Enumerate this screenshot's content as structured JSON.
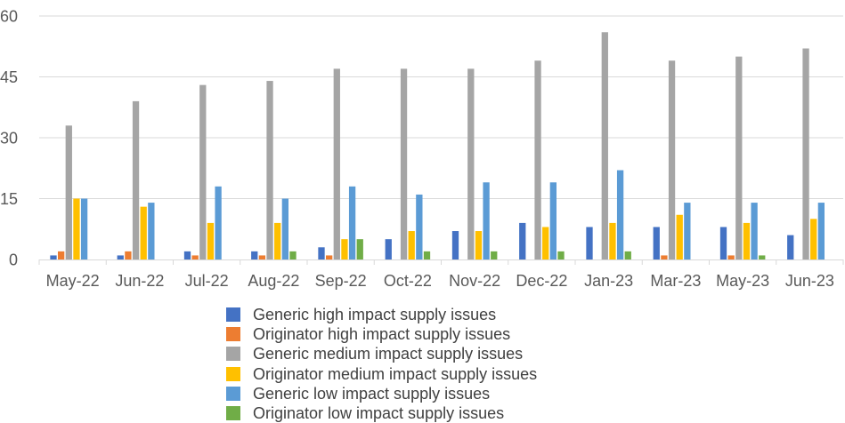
{
  "chart_data": {
    "type": "bar",
    "title": "",
    "xlabel": "",
    "ylabel": "",
    "ylim": [
      0,
      60
    ],
    "yticks": [
      0,
      15,
      30,
      45,
      60
    ],
    "grid": true,
    "legend_position": "bottom",
    "categories": [
      "May-22",
      "Jun-22",
      "Jul-22",
      "Aug-22",
      "Sep-22",
      "Oct-22",
      "Nov-22",
      "Dec-22",
      "Jan-23",
      "Mar-23",
      "May-23",
      "Jun-23"
    ],
    "series": [
      {
        "name": "Generic high impact supply issues",
        "color": "#4472C4",
        "values": [
          1,
          1,
          2,
          2,
          3,
          5,
          7,
          9,
          8,
          8,
          8,
          6
        ]
      },
      {
        "name": "Originator high impact supply issues",
        "color": "#ED7D31",
        "values": [
          2,
          2,
          1,
          1,
          1,
          0,
          0,
          0,
          0,
          1,
          1,
          0
        ]
      },
      {
        "name": "Generic medium impact supply issues",
        "color": "#A5A5A5",
        "values": [
          33,
          39,
          43,
          44,
          47,
          47,
          47,
          49,
          56,
          49,
          50,
          52
        ]
      },
      {
        "name": "Originator medium impact supply issues",
        "color": "#FFC000",
        "values": [
          15,
          13,
          9,
          9,
          5,
          7,
          7,
          8,
          9,
          11,
          9,
          10
        ]
      },
      {
        "name": "Generic low impact supply issues",
        "color": "#5B9BD5",
        "values": [
          15,
          14,
          18,
          15,
          18,
          16,
          19,
          19,
          22,
          14,
          14,
          14
        ]
      },
      {
        "name": "Originator low impact supply issues",
        "color": "#70AD47",
        "values": [
          0,
          0,
          0,
          2,
          5,
          2,
          2,
          2,
          2,
          0,
          1,
          0
        ]
      }
    ]
  }
}
